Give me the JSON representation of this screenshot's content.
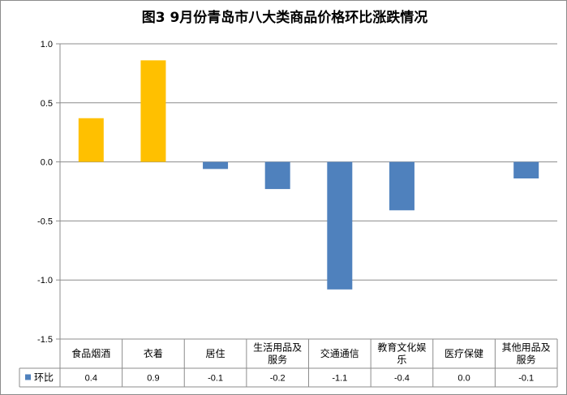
{
  "chart_data": {
    "type": "bar",
    "title": "图3  9月份青岛市八大类商品价格环比涨跌情况",
    "categories": [
      [
        "食品烟酒"
      ],
      [
        "衣着"
      ],
      [
        "居住"
      ],
      [
        "生活用品及",
        "服务"
      ],
      [
        "交通通信"
      ],
      [
        "教育文化娱",
        "乐"
      ],
      [
        "医疗保健"
      ],
      [
        "其他用品及",
        "服务"
      ]
    ],
    "series": [
      {
        "name": "环比",
        "values": [
          0.37,
          0.86,
          -0.06,
          -0.23,
          -1.08,
          -0.41,
          0.0,
          -0.14
        ],
        "labels": [
          "0.4",
          "0.9",
          "-0.1",
          "-0.2",
          "-1.1",
          "-0.4",
          "0.0",
          "-0.1"
        ]
      }
    ],
    "ylim": [
      -1.5,
      1.0
    ],
    "yticks": [
      "1.0",
      "0.5",
      "0.0",
      "-0.5",
      "-1.0",
      "-1.5"
    ],
    "ytick_values": [
      1.0,
      0.5,
      0.0,
      -0.5,
      -1.0,
      -1.5
    ],
    "positive_color": "#FFC000",
    "negative_color": "#4F81BD",
    "legend_color": "#4F81BD",
    "grid": true,
    "data_table": true
  }
}
